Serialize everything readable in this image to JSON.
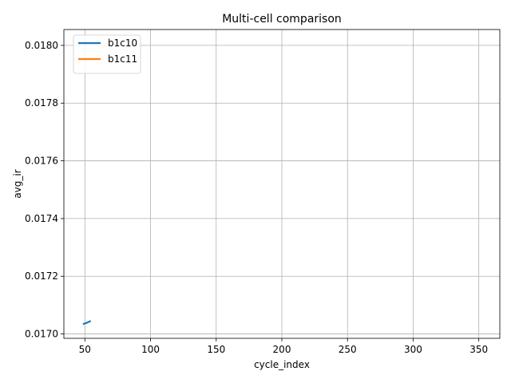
{
  "chart_data": {
    "type": "line",
    "title": "Multi-cell comparison",
    "xlabel": "cycle_index",
    "ylabel": "avg_ir",
    "xlim": [
      34,
      366
    ],
    "ylim": [
      0.016985,
      0.018055
    ],
    "xticks": [
      50,
      100,
      150,
      200,
      250,
      300,
      350
    ],
    "xtick_labels": [
      "50",
      "100",
      "150",
      "200",
      "250",
      "300",
      "350"
    ],
    "yticks": [
      0.017,
      0.0172,
      0.0174,
      0.0176,
      0.0178,
      0.018
    ],
    "ytick_labels": [
      "0.0170",
      "0.0172",
      "0.0174",
      "0.0176",
      "0.0178",
      "0.0180"
    ],
    "grid": true,
    "legend_position": "top-left",
    "series": [
      {
        "name": "b1c10",
        "color": "#1f77b4",
        "x": [
          49,
          51,
          53,
          54
        ],
        "y": [
          0.017035,
          0.017038,
          0.017042,
          0.017044
        ]
      },
      {
        "name": "b1c11",
        "color": "#ff7f0e",
        "x": [],
        "y": []
      }
    ]
  }
}
